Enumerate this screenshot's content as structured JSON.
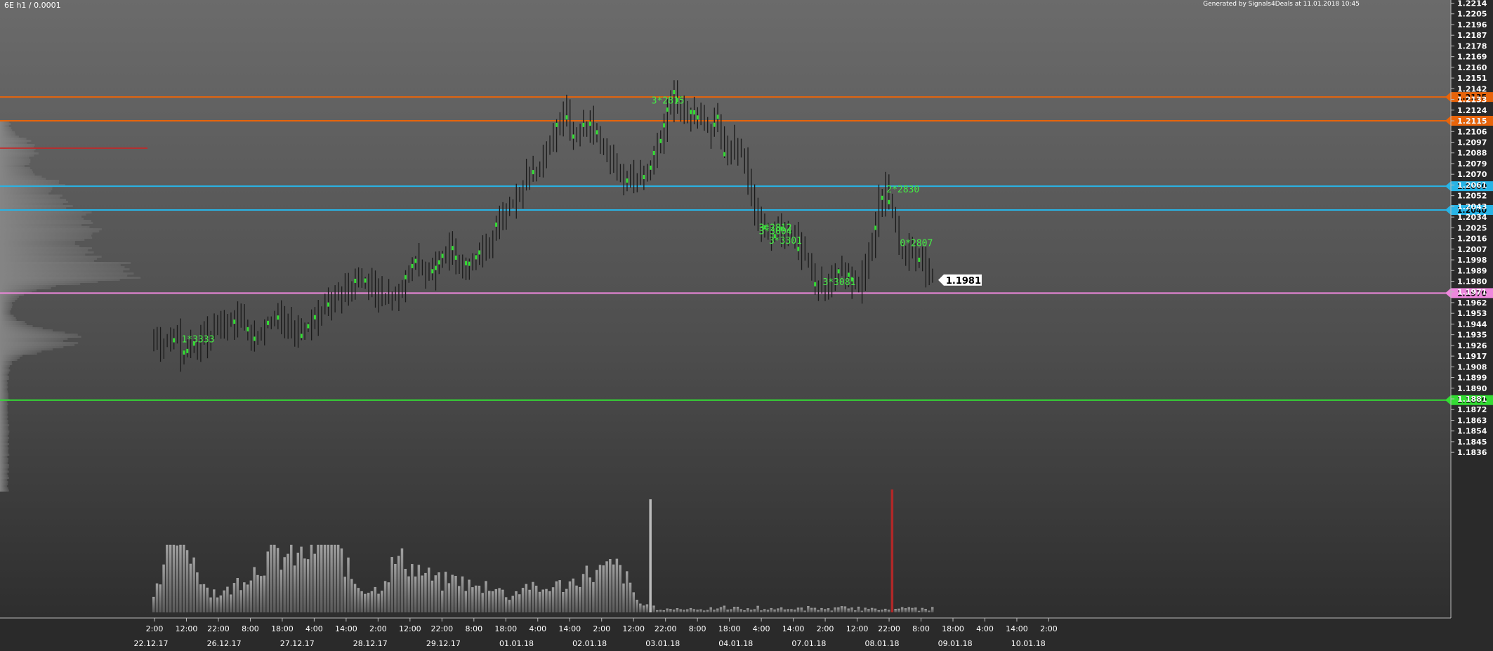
{
  "header": {
    "symbol_label": "6E h1 / 0.0001",
    "generated_label": "Generated by Signals4Deals at 11.01.2018 10:45"
  },
  "chart_data": {
    "type": "candlestick",
    "title": "6E h1 / 0.0001",
    "ylim": [
      1.1828,
      1.2221
    ],
    "y_ticks": [
      "1.2214",
      "1.2205",
      "1.2196",
      "1.2187",
      "1.2178",
      "1.2169",
      "1.2160",
      "1.2151",
      "1.2142",
      "1.2133",
      "1.2124",
      "1.2115",
      "1.2106",
      "1.2097",
      "1.2088",
      "1.2079",
      "1.2070",
      "1.2061",
      "1.2052",
      "1.2043",
      "1.2034",
      "1.2025",
      "1.2016",
      "1.2007",
      "1.1998",
      "1.1989",
      "1.1980",
      "1.1971",
      "1.1962",
      "1.1953",
      "1.1944",
      "1.1935",
      "1.1926",
      "1.1917",
      "1.1908",
      "1.1899",
      "1.1890",
      "1.1881",
      "1.1872",
      "1.1863",
      "1.1854",
      "1.1845",
      "1.1836"
    ],
    "x_time_labels": [
      "2:00",
      "12:00",
      "22:00",
      "8:00",
      "18:00",
      "4:00",
      "14:00",
      "2:00",
      "12:00",
      "22:00",
      "8:00",
      "18:00",
      "4:00",
      "14:00",
      "2:00",
      "12:00",
      "22:00",
      "8:00",
      "18:00",
      "4:00",
      "14:00",
      "2:00",
      "12:00",
      "22:00",
      "8:00",
      "18:00",
      "4:00",
      "14:00",
      "2:00"
    ],
    "x_date_labels": [
      "22.12.17",
      "26.12.17",
      "27.12.17",
      "28.12.17",
      "29.12.17",
      "01.01.18",
      "02.01.18",
      "03.01.18",
      "04.01.18",
      "07.01.18",
      "08.01.18",
      "09.01.18",
      "10.01.18"
    ],
    "levels": [
      {
        "value": 1.2135,
        "label": "1.2135",
        "color": "#e8640a"
      },
      {
        "value": 1.2115,
        "label": "1.2115",
        "color": "#e8640a"
      },
      {
        "value": 1.206,
        "label": "1.2060",
        "color": "#28b4e6"
      },
      {
        "value": 1.204,
        "label": "1.2040",
        "color": "#28b4e6"
      },
      {
        "value": 1.197,
        "label": "1.1970",
        "color": "#ee88dd"
      },
      {
        "value": 1.188,
        "label": "1.1880",
        "color": "#33dd33"
      }
    ],
    "last_price": {
      "value": 1.1981,
      "label": "1.1981"
    },
    "annotations": [
      {
        "text": "1*3333",
        "bar": 7,
        "price": 1.1931
      },
      {
        "text": "3*2815",
        "bar": 147,
        "price": 1.2132
      },
      {
        "text": "2*2830",
        "bar": 217,
        "price": 1.2057
      },
      {
        "text": "3*2812",
        "bar": 179,
        "price": 1.2025
      },
      {
        "text": "3*3004",
        "bar": 179,
        "price": 1.2022
      },
      {
        "text": "3*3301",
        "bar": 182,
        "price": 1.2014
      },
      {
        "text": "0*2807",
        "bar": 221,
        "price": 1.2012
      },
      {
        "text": "3*3081",
        "bar": 198,
        "price": 1.1979
      }
    ],
    "anchors": [
      [
        0,
        1.1928
      ],
      [
        7,
        1.1933
      ],
      [
        8,
        1.1918
      ],
      [
        14,
        1.193
      ],
      [
        20,
        1.1945
      ],
      [
        26,
        1.1949
      ],
      [
        30,
        1.193
      ],
      [
        36,
        1.1952
      ],
      [
        44,
        1.1935
      ],
      [
        52,
        1.1962
      ],
      [
        58,
        1.1975
      ],
      [
        64,
        1.1981
      ],
      [
        68,
        1.1965
      ],
      [
        73,
        1.197
      ],
      [
        78,
        1.1995
      ],
      [
        82,
        1.1985
      ],
      [
        88,
        1.2007
      ],
      [
        93,
        1.1995
      ],
      [
        98,
        1.2003
      ],
      [
        101,
        1.2018
      ],
      [
        104,
        1.2038
      ],
      [
        108,
        1.2048
      ],
      [
        112,
        1.2072
      ],
      [
        116,
        1.208
      ],
      [
        119,
        1.2104
      ],
      [
        122,
        1.2125
      ],
      [
        125,
        1.2102
      ],
      [
        130,
        1.2114
      ],
      [
        134,
        1.2094
      ],
      [
        138,
        1.2078
      ],
      [
        140,
        1.2062
      ],
      [
        143,
        1.2064
      ],
      [
        147,
        1.207
      ],
      [
        151,
        1.21
      ],
      [
        153,
        1.2125
      ],
      [
        155,
        1.2138
      ],
      [
        158,
        1.2121
      ],
      [
        161,
        1.2122
      ],
      [
        163,
        1.2117
      ],
      [
        166,
        1.2102
      ],
      [
        168,
        1.2118
      ],
      [
        170,
        1.2084
      ],
      [
        173,
        1.2095
      ],
      [
        176,
        1.2082
      ],
      [
        178,
        1.2046
      ],
      [
        181,
        1.2025
      ],
      [
        184,
        1.2016
      ],
      [
        187,
        1.2022
      ],
      [
        191,
        1.2013
      ],
      [
        195,
        1.1998
      ],
      [
        197,
        1.1979
      ],
      [
        199,
        1.1974
      ],
      [
        202,
        1.1982
      ],
      [
        206,
        1.1988
      ],
      [
        210,
        1.1978
      ],
      [
        214,
        1.2005
      ],
      [
        216,
        1.2045
      ],
      [
        218,
        1.2058
      ],
      [
        220,
        1.2035
      ],
      [
        222,
        1.2012
      ],
      [
        225,
        1.2006
      ],
      [
        229,
        1.1996
      ],
      [
        232,
        1.1981
      ]
    ],
    "volumes": {
      "groups": [
        [
          0.04,
          0.18,
          0.44,
          0.31
        ],
        [
          0.04,
          0.22,
          0.44,
          0.24
        ],
        [
          0.15,
          0.31,
          0.29,
          0.27
        ],
        [
          0.46,
          0.18,
          0.29,
          0.27
        ],
        [
          0.64,
          0.18,
          0.31,
          0.26
        ],
        [
          0.7,
          0.38,
          0.37,
          0.25
        ],
        [
          0.82,
          0.25,
          0.29,
          0.27
        ],
        [
          0.96,
          0.21,
          0.45,
          0.24
        ],
        [
          1.06,
          0.18,
          0.69,
          0.21
        ],
        [
          1.26,
          0.17,
          0.24,
          0.23
        ],
        [
          1.47,
          0.16,
          0.6,
          0.24
        ],
        [
          1.64,
          0.22,
          0.44,
          0.23
        ],
        [
          1.86,
          0.16,
          0.4,
          0.31
        ],
        [
          2.07,
          0.15,
          0.34,
          0.26
        ],
        [
          2.3,
          0.14,
          0.31,
          0.31
        ],
        [
          2.49,
          0.16,
          0.3,
          0.23
        ],
        [
          2.7,
          0.18,
          0.48,
          0.24
        ],
        [
          2.89,
          0.16,
          0.58,
          0.25
        ]
      ],
      "spikes": [
        {
          "bar": 148,
          "value": 0.92
        },
        {
          "bar": 220,
          "value": 1.0,
          "color": "#b02828"
        }
      ]
    },
    "volume_profile": "left histogram, peak at price 1.2092 marked red"
  }
}
